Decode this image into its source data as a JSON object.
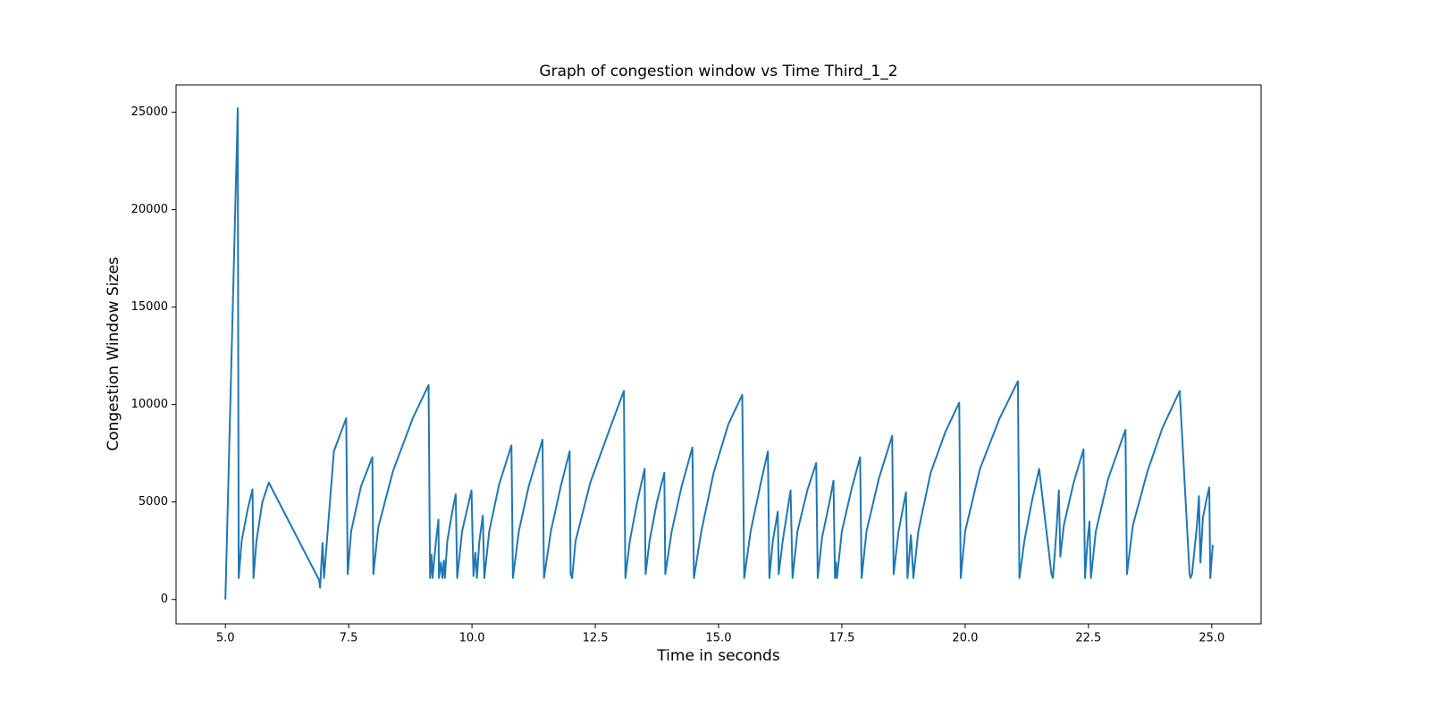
{
  "chart_data": {
    "type": "line",
    "title": "Graph of congestion window vs Time Third_1_2",
    "x_label": "Time in seconds",
    "y_label": "Congestion Window Sizes",
    "color": "#1f77b4",
    "xlim": [
      4.0,
      26.0
    ],
    "ylim": [
      -1250,
      26400
    ],
    "xticks": [
      {
        "value": 5,
        "label": "5.0"
      },
      7.5,
      {
        "value": 10,
        "label": "10.0"
      },
      12.5,
      {
        "value": 15,
        "label": "15.0"
      },
      17.5,
      {
        "value": 20,
        "label": "20.0"
      },
      22.5,
      {
        "value": 25,
        "label": "25.0"
      }
    ],
    "yticks": [
      0,
      5000,
      10000,
      15000,
      20000,
      25000
    ],
    "x": [
      5.0,
      5.02,
      5.1,
      5.18,
      5.24,
      5.25,
      5.27,
      5.33,
      5.45,
      5.55,
      5.57,
      5.63,
      5.75,
      5.88,
      6.9,
      6.92,
      6.97,
      7.0,
      7.2,
      7.45,
      7.48,
      7.55,
      7.75,
      7.98,
      8.0,
      8.1,
      8.4,
      8.8,
      9.12,
      9.15,
      9.18,
      9.2,
      9.27,
      9.32,
      9.33,
      9.37,
      9.4,
      9.43,
      9.45,
      9.5,
      9.6,
      9.67,
      9.7,
      9.8,
      9.99,
      10.03,
      10.07,
      10.1,
      10.15,
      10.22,
      10.25,
      10.35,
      10.55,
      10.8,
      10.83,
      10.95,
      11.15,
      11.43,
      11.46,
      11.6,
      11.8,
      11.98,
      12.0,
      12.03,
      12.1,
      12.4,
      12.8,
      13.08,
      13.11,
      13.2,
      13.35,
      13.5,
      13.52,
      13.6,
      13.75,
      13.9,
      13.92,
      14.05,
      14.25,
      14.47,
      14.5,
      14.65,
      14.9,
      15.2,
      15.48,
      15.52,
      15.65,
      15.85,
      16.0,
      16.03,
      16.1,
      16.2,
      16.22,
      16.3,
      16.46,
      16.5,
      16.6,
      16.8,
      16.98,
      17.01,
      17.1,
      17.25,
      17.33,
      17.36,
      17.38,
      17.4,
      17.5,
      17.7,
      17.87,
      17.9,
      18.0,
      18.25,
      18.52,
      18.55,
      18.65,
      18.8,
      18.83,
      18.9,
      18.95,
      19.05,
      19.3,
      19.6,
      19.88,
      19.91,
      20.0,
      20.3,
      20.7,
      21.07,
      21.1,
      21.2,
      21.35,
      21.5,
      21.75,
      21.78,
      21.85,
      21.9,
      21.93,
      22.0,
      22.2,
      22.4,
      22.43,
      22.48,
      22.52,
      22.55,
      22.65,
      22.9,
      23.25,
      23.28,
      23.4,
      23.7,
      24.0,
      24.35,
      24.55,
      24.57,
      24.6,
      24.7,
      24.74,
      24.77,
      24.82,
      24.9,
      24.95,
      24.97,
      25.02
    ],
    "values": [
      0,
      2000,
      10000,
      18000,
      24000,
      25200,
      1100,
      3000,
      4600,
      5650,
      1100,
      3000,
      5000,
      6000,
      1000,
      600,
      2900,
      1100,
      7600,
      9300,
      1300,
      3500,
      5800,
      7300,
      1300,
      3700,
      6600,
      9300,
      11000,
      1100,
      2300,
      1100,
      3000,
      4100,
      1100,
      1900,
      1100,
      2000,
      1100,
      3000,
      4500,
      5400,
      1100,
      3500,
      5600,
      1200,
      2400,
      1100,
      3000,
      4300,
      1100,
      3500,
      5900,
      7900,
      1100,
      3500,
      5800,
      8200,
      1100,
      3500,
      5800,
      7600,
      1300,
      1100,
      3000,
      6000,
      8800,
      10700,
      1100,
      3000,
      5000,
      6700,
      1300,
      3000,
      5000,
      6500,
      1300,
      3500,
      5800,
      7800,
      1100,
      3500,
      6500,
      9000,
      10500,
      1100,
      3500,
      5900,
      7600,
      1100,
      3000,
      4500,
      1300,
      3000,
      5600,
      1100,
      3500,
      5600,
      7000,
      1100,
      3200,
      5000,
      6100,
      1100,
      1900,
      1100,
      3500,
      5700,
      7300,
      1100,
      3500,
      6200,
      8400,
      1300,
      3500,
      5500,
      1100,
      3300,
      1100,
      3500,
      6500,
      8600,
      10100,
      1100,
      3500,
      6700,
      9300,
      11200,
      1100,
      3000,
      5000,
      6700,
      1300,
      1100,
      3500,
      5600,
      2200,
      3800,
      6000,
      7700,
      1100,
      3000,
      4000,
      1100,
      3500,
      6200,
      8700,
      1300,
      3800,
      6600,
      8800,
      10700,
      1300,
      1100,
      1300,
      3800,
      5300,
      1900,
      4200,
      5200,
      5750,
      1100,
      2800
    ]
  }
}
